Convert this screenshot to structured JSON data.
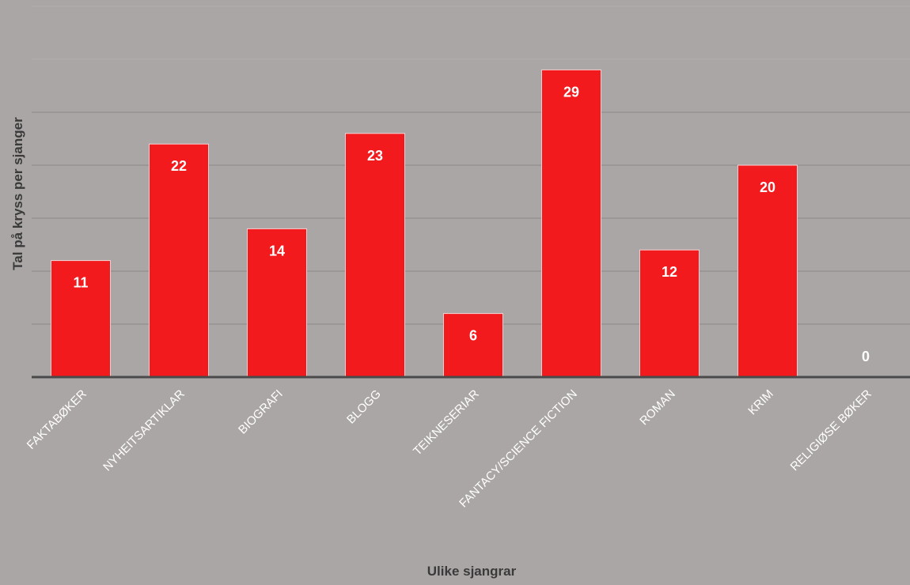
{
  "chart_data": {
    "type": "bar",
    "title": "",
    "xlabel": "Ulike sjangrar",
    "ylabel": "Tal på kryss per sjanger",
    "categories": [
      "FAKTABØKER",
      "NYHEITSARTIKLAR",
      "BIOGRAFI",
      "BLOGG",
      "TEIKNESERIAR",
      "FANTACY/SCIENCE FICTION",
      "ROMAN",
      "KRIM",
      "RELIGIØSE BØKER"
    ],
    "values": [
      11,
      22,
      14,
      23,
      6,
      29,
      12,
      20,
      0
    ],
    "ylim": [
      0,
      35
    ],
    "ytick_step": 5,
    "grid": true,
    "legend": "none",
    "colors": {
      "bar": "#f21a1c",
      "bar_edge": "#f7d2d2",
      "background": "#aaa6a5",
      "bar_label": "#ffffff",
      "zero_label": "#ffffff",
      "tick_label": "#ffffff",
      "axis_title": "#3a3a3a"
    }
  }
}
